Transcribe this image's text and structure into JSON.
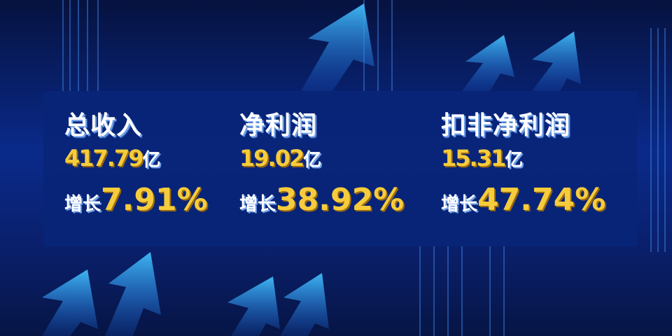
{
  "colors": {
    "accent": "#f6cc3c",
    "title": "#ffffff",
    "panel": "#08247a"
  },
  "metrics": [
    {
      "title": "总收入",
      "amount": "417.79",
      "unit": "亿",
      "growth_label": "增长",
      "growth": "7.91%"
    },
    {
      "title": "净利润",
      "amount": "19.02",
      "unit": "亿",
      "growth_label": "增长",
      "growth": "38.92%"
    },
    {
      "title": "扣非净利润",
      "amount": "15.31",
      "unit": "亿",
      "growth_label": "增长",
      "growth": "47.74%"
    }
  ],
  "decor": {
    "icons": [
      "up-arrow-icon"
    ]
  }
}
